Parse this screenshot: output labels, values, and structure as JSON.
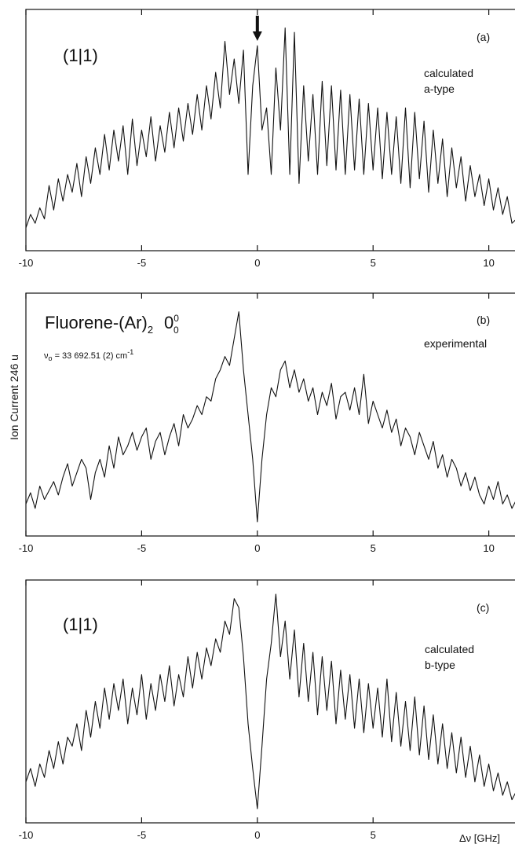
{
  "chart_data": [
    {
      "type": "line",
      "panel": "(a)",
      "tag": "(1|1)",
      "annotation_lines": [
        "calculated",
        "a-type"
      ],
      "marker": {
        "type": "down-arrow",
        "x": 0
      },
      "xlim": [
        -10,
        11.2
      ],
      "x_ticks": [
        -10,
        -5,
        0,
        5,
        10
      ],
      "x_tick_labels": [
        "-10",
        "-5",
        "0",
        "5",
        "10"
      ],
      "series": [
        {
          "x": [
            -10,
            -9.8,
            -9.6,
            -9.4,
            -9.2,
            -9,
            -8.8,
            -8.6,
            -8.4,
            -8.2,
            -8,
            -7.8,
            -7.6,
            -7.4,
            -7.2,
            -7,
            -6.8,
            -6.6,
            -6.4,
            -6.2,
            -6,
            -5.8,
            -5.6,
            -5.4,
            -5.2,
            -5,
            -4.8,
            -4.6,
            -4.4,
            -4.2,
            -4,
            -3.8,
            -3.6,
            -3.4,
            -3.2,
            -3,
            -2.8,
            -2.6,
            -2.4,
            -2.2,
            -2,
            -1.8,
            -1.6,
            -1.4,
            -1.2,
            -1,
            -0.8,
            -0.6,
            -0.4,
            -0.2,
            0,
            0.2,
            0.4,
            0.6,
            0.8,
            1,
            1.2,
            1.4,
            1.6,
            1.8,
            2,
            2.2,
            2.4,
            2.6,
            2.8,
            3,
            3.2,
            3.4,
            3.6,
            3.8,
            4,
            4.2,
            4.4,
            4.6,
            4.8,
            5,
            5.2,
            5.4,
            5.6,
            5.8,
            6,
            6.2,
            6.4,
            6.6,
            6.8,
            7,
            7.2,
            7.4,
            7.6,
            7.8,
            8,
            8.2,
            8.4,
            8.6,
            8.8,
            9,
            9.2,
            9.4,
            9.6,
            9.8,
            10,
            10.2,
            10.4,
            10.6,
            10.8,
            11,
            11.2
          ],
          "y": [
            0.06,
            0.12,
            0.08,
            0.15,
            0.1,
            0.25,
            0.14,
            0.28,
            0.18,
            0.3,
            0.22,
            0.35,
            0.2,
            0.38,
            0.26,
            0.42,
            0.3,
            0.48,
            0.32,
            0.5,
            0.36,
            0.52,
            0.3,
            0.55,
            0.34,
            0.5,
            0.38,
            0.56,
            0.36,
            0.52,
            0.4,
            0.58,
            0.42,
            0.6,
            0.45,
            0.62,
            0.48,
            0.66,
            0.5,
            0.7,
            0.55,
            0.76,
            0.6,
            0.9,
            0.66,
            0.82,
            0.62,
            0.86,
            0.3,
            0.7,
            0.88,
            0.5,
            0.6,
            0.3,
            0.78,
            0.5,
            0.96,
            0.3,
            0.94,
            0.26,
            0.7,
            0.36,
            0.66,
            0.3,
            0.72,
            0.34,
            0.7,
            0.32,
            0.68,
            0.3,
            0.66,
            0.32,
            0.64,
            0.3,
            0.62,
            0.32,
            0.6,
            0.28,
            0.58,
            0.3,
            0.56,
            0.26,
            0.6,
            0.24,
            0.58,
            0.28,
            0.54,
            0.22,
            0.5,
            0.26,
            0.46,
            0.2,
            0.42,
            0.24,
            0.38,
            0.18,
            0.34,
            0.2,
            0.3,
            0.16,
            0.28,
            0.14,
            0.24,
            0.12,
            0.2,
            0.08,
            0.1
          ]
        }
      ]
    },
    {
      "type": "line",
      "panel": "(b)",
      "title": "Fluorene-(Ar)",
      "title_subscript": "2",
      "title_suffix": "0",
      "title_suffix_sup": "0",
      "title_suffix_sub": "0",
      "nu0_symbol": "ν",
      "nu0_sub": "o",
      "nu0_text": " = 33 692.51 (2) cm",
      "nu0_unit_sup": "-1",
      "annotation_lines": [
        "experimental"
      ],
      "ylabel": "Ion Current  246 u",
      "xlim": [
        -10,
        11.2
      ],
      "x_ticks": [
        -10,
        -5,
        0,
        5,
        10
      ],
      "x_tick_labels": [
        "-10",
        "-5",
        "0",
        "5",
        "10"
      ],
      "series": [
        {
          "x": [
            -10,
            -9.8,
            -9.6,
            -9.4,
            -9.2,
            -9,
            -8.8,
            -8.6,
            -8.4,
            -8.2,
            -8,
            -7.8,
            -7.6,
            -7.4,
            -7.2,
            -7,
            -6.8,
            -6.6,
            -6.4,
            -6.2,
            -6,
            -5.8,
            -5.6,
            -5.4,
            -5.2,
            -5,
            -4.8,
            -4.6,
            -4.4,
            -4.2,
            -4,
            -3.8,
            -3.6,
            -3.4,
            -3.2,
            -3,
            -2.8,
            -2.6,
            -2.4,
            -2.2,
            -2,
            -1.8,
            -1.6,
            -1.4,
            -1.2,
            -1,
            -0.8,
            -0.6,
            -0.4,
            -0.2,
            0,
            0.2,
            0.4,
            0.6,
            0.8,
            1,
            1.2,
            1.4,
            1.6,
            1.8,
            2,
            2.2,
            2.4,
            2.6,
            2.8,
            3,
            3.2,
            3.4,
            3.6,
            3.8,
            4,
            4.2,
            4.4,
            4.6,
            4.8,
            5,
            5.2,
            5.4,
            5.6,
            5.8,
            6,
            6.2,
            6.4,
            6.6,
            6.8,
            7,
            7.2,
            7.4,
            7.6,
            7.8,
            8,
            8.2,
            8.4,
            8.6,
            8.8,
            9,
            9.2,
            9.4,
            9.6,
            9.8,
            10,
            10.2,
            10.4,
            10.6,
            10.8,
            11,
            11.2
          ],
          "y": [
            0.1,
            0.15,
            0.08,
            0.18,
            0.12,
            0.16,
            0.2,
            0.14,
            0.22,
            0.28,
            0.18,
            0.24,
            0.3,
            0.26,
            0.12,
            0.24,
            0.3,
            0.22,
            0.36,
            0.26,
            0.4,
            0.32,
            0.36,
            0.42,
            0.34,
            0.4,
            0.44,
            0.3,
            0.38,
            0.42,
            0.32,
            0.4,
            0.46,
            0.36,
            0.5,
            0.44,
            0.48,
            0.54,
            0.5,
            0.58,
            0.56,
            0.66,
            0.7,
            0.76,
            0.72,
            0.84,
            0.96,
            0.7,
            0.5,
            0.3,
            0.02,
            0.3,
            0.5,
            0.62,
            0.58,
            0.7,
            0.74,
            0.62,
            0.7,
            0.6,
            0.66,
            0.56,
            0.62,
            0.5,
            0.6,
            0.54,
            0.64,
            0.48,
            0.58,
            0.6,
            0.52,
            0.62,
            0.5,
            0.68,
            0.46,
            0.56,
            0.5,
            0.44,
            0.52,
            0.42,
            0.48,
            0.36,
            0.44,
            0.4,
            0.32,
            0.42,
            0.36,
            0.3,
            0.38,
            0.26,
            0.32,
            0.22,
            0.3,
            0.26,
            0.18,
            0.24,
            0.16,
            0.22,
            0.14,
            0.1,
            0.18,
            0.12,
            0.2,
            0.1,
            0.14,
            0.08,
            0.12
          ]
        }
      ]
    },
    {
      "type": "line",
      "panel": "(c)",
      "tag": "(1|1)",
      "annotation_lines": [
        "calculated",
        "b-type"
      ],
      "xlabel": "Δν  [GHz]",
      "xlim": [
        -10,
        11.2
      ],
      "x_ticks": [
        -10,
        -5,
        0,
        5
      ],
      "x_tick_labels": [
        "-10",
        "-5",
        "0",
        "5"
      ],
      "series": [
        {
          "x": [
            -10,
            -9.8,
            -9.6,
            -9.4,
            -9.2,
            -9,
            -8.8,
            -8.6,
            -8.4,
            -8.2,
            -8,
            -7.8,
            -7.6,
            -7.4,
            -7.2,
            -7,
            -6.8,
            -6.6,
            -6.4,
            -6.2,
            -6,
            -5.8,
            -5.6,
            -5.4,
            -5.2,
            -5,
            -4.8,
            -4.6,
            -4.4,
            -4.2,
            -4,
            -3.8,
            -3.6,
            -3.4,
            -3.2,
            -3,
            -2.8,
            -2.6,
            -2.4,
            -2.2,
            -2,
            -1.8,
            -1.6,
            -1.4,
            -1.2,
            -1,
            -0.8,
            -0.6,
            -0.4,
            -0.2,
            0,
            0.2,
            0.4,
            0.6,
            0.8,
            1,
            1.2,
            1.4,
            1.6,
            1.8,
            2,
            2.2,
            2.4,
            2.6,
            2.8,
            3,
            3.2,
            3.4,
            3.6,
            3.8,
            4,
            4.2,
            4.4,
            4.6,
            4.8,
            5,
            5.2,
            5.4,
            5.6,
            5.8,
            6,
            6.2,
            6.4,
            6.6,
            6.8,
            7,
            7.2,
            7.4,
            7.6,
            7.8,
            8,
            8.2,
            8.4,
            8.6,
            8.8,
            9,
            9.2,
            9.4,
            9.6,
            9.8,
            10,
            10.2,
            10.4,
            10.6,
            10.8,
            11,
            11.2
          ],
          "y": [
            0.14,
            0.2,
            0.12,
            0.22,
            0.16,
            0.28,
            0.2,
            0.32,
            0.22,
            0.34,
            0.3,
            0.4,
            0.28,
            0.46,
            0.34,
            0.5,
            0.38,
            0.56,
            0.42,
            0.58,
            0.46,
            0.6,
            0.4,
            0.56,
            0.44,
            0.62,
            0.42,
            0.58,
            0.46,
            0.62,
            0.5,
            0.66,
            0.48,
            0.62,
            0.52,
            0.7,
            0.56,
            0.72,
            0.6,
            0.74,
            0.66,
            0.78,
            0.72,
            0.86,
            0.8,
            0.96,
            0.92,
            0.7,
            0.4,
            0.2,
            0.02,
            0.3,
            0.6,
            0.76,
            0.98,
            0.7,
            0.86,
            0.6,
            0.82,
            0.52,
            0.76,
            0.5,
            0.72,
            0.44,
            0.7,
            0.46,
            0.68,
            0.4,
            0.64,
            0.42,
            0.62,
            0.38,
            0.6,
            0.36,
            0.58,
            0.38,
            0.56,
            0.34,
            0.6,
            0.32,
            0.54,
            0.3,
            0.5,
            0.28,
            0.52,
            0.26,
            0.48,
            0.24,
            0.44,
            0.22,
            0.4,
            0.2,
            0.36,
            0.18,
            0.34,
            0.16,
            0.3,
            0.14,
            0.26,
            0.12,
            0.22,
            0.1,
            0.18,
            0.08,
            0.14,
            0.06,
            0.1
          ]
        }
      ]
    }
  ]
}
